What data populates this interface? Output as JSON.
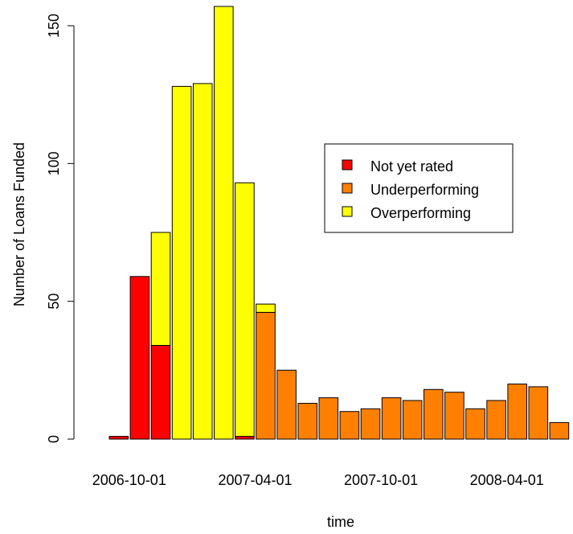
{
  "chart_data": {
    "type": "bar",
    "stacked": true,
    "xlabel": "time",
    "ylabel": "Number of Loans Funded",
    "ylim": [
      0,
      157
    ],
    "yticks": [
      0,
      50,
      100,
      150
    ],
    "xtick_labels": [
      "2006-10-01",
      "2007-04-01",
      "2007-10-01",
      "2008-04-01"
    ],
    "xtick_months": [
      "2006-10",
      "2007-04",
      "2007-10",
      "2008-04"
    ],
    "categories": [
      "2006-09",
      "2006-10",
      "2006-11",
      "2006-12",
      "2007-01",
      "2007-02",
      "2007-03",
      "2007-04",
      "2007-05",
      "2007-06",
      "2007-07",
      "2007-08",
      "2007-09",
      "2007-10",
      "2007-11",
      "2007-12",
      "2008-01",
      "2008-02",
      "2008-03",
      "2008-04",
      "2008-05",
      "2008-06",
      "2008-07"
    ],
    "series": [
      {
        "name": "Not yet rated",
        "color": "#ff0000",
        "values": [
          1,
          59,
          34,
          0,
          0,
          0,
          1,
          0,
          0,
          0,
          0,
          0,
          0,
          0,
          0,
          0,
          0,
          0,
          0,
          0,
          0,
          0,
          0
        ]
      },
      {
        "name": "Underperforming",
        "color": "#ff8000",
        "values": [
          0,
          0,
          0,
          0,
          0,
          0,
          0,
          46,
          25,
          13,
          15,
          10,
          11,
          15,
          14,
          18,
          17,
          11,
          14,
          20,
          19,
          6,
          0
        ]
      },
      {
        "name": "Overperforming",
        "color": "#ffff00",
        "values": [
          0,
          0,
          41,
          128,
          129,
          157,
          92,
          3,
          0,
          0,
          0,
          0,
          0,
          0,
          0,
          0,
          0,
          0,
          0,
          0,
          0,
          0,
          0
        ]
      }
    ],
    "legend_position": "right"
  }
}
